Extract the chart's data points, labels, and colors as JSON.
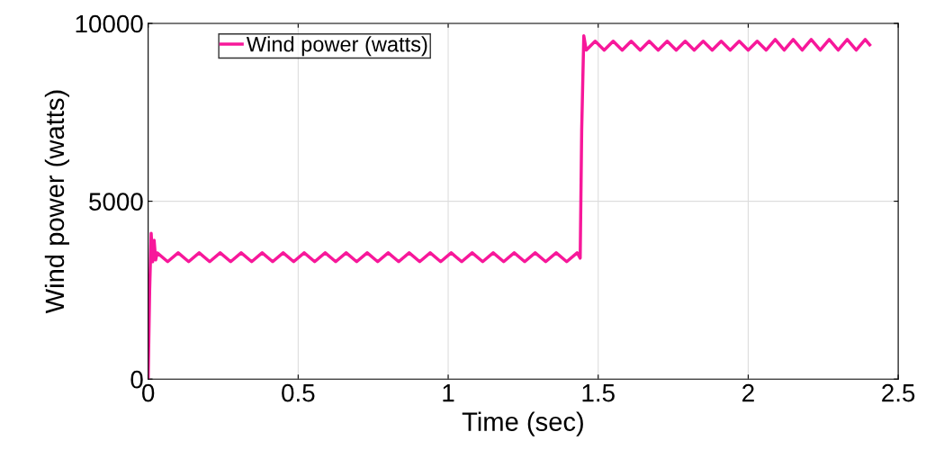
{
  "chart_data": {
    "type": "line",
    "xlabel": "Time (sec)",
    "ylabel": "Wind power (watts)",
    "xlim": [
      0,
      2.5
    ],
    "xticks": [
      0,
      0.5,
      1,
      1.5,
      2,
      2.5
    ],
    "ylim": [
      0,
      10000
    ],
    "yticks": [
      0,
      5000,
      10000
    ],
    "grid": true,
    "legend": "top left",
    "series": [
      {
        "name": "Wind power (watts)",
        "color": "#f7189a",
        "x": [
          0,
          0.005,
          0.01,
          0.015,
          0.02,
          0.025,
          0.03,
          0.065,
          0.1,
          0.135,
          0.17,
          0.205,
          0.24,
          0.275,
          0.31,
          0.345,
          0.38,
          0.415,
          0.45,
          0.485,
          0.52,
          0.555,
          0.59,
          0.625,
          0.66,
          0.695,
          0.73,
          0.765,
          0.8,
          0.835,
          0.87,
          0.905,
          0.94,
          0.975,
          1.01,
          1.045,
          1.08,
          1.115,
          1.15,
          1.185,
          1.22,
          1.255,
          1.29,
          1.325,
          1.36,
          1.395,
          1.43,
          1.44,
          1.445,
          1.452,
          1.46,
          1.49,
          1.52,
          1.55,
          1.58,
          1.61,
          1.64,
          1.67,
          1.7,
          1.73,
          1.76,
          1.79,
          1.82,
          1.85,
          1.88,
          1.91,
          1.94,
          1.97,
          2.0,
          2.03,
          2.06,
          2.09,
          2.12,
          2.15,
          2.18,
          2.21,
          2.24,
          2.27,
          2.3,
          2.33,
          2.36,
          2.39,
          2.405
        ],
        "values": [
          0,
          2500,
          4100,
          3300,
          3900,
          3350,
          3550,
          3300,
          3550,
          3300,
          3550,
          3300,
          3550,
          3300,
          3550,
          3300,
          3550,
          3300,
          3550,
          3300,
          3550,
          3300,
          3550,
          3300,
          3550,
          3300,
          3550,
          3300,
          3550,
          3300,
          3550,
          3300,
          3550,
          3300,
          3550,
          3300,
          3550,
          3300,
          3550,
          3300,
          3550,
          3300,
          3550,
          3300,
          3550,
          3300,
          3550,
          3400,
          7000,
          9650,
          9250,
          9500,
          9250,
          9500,
          9250,
          9500,
          9250,
          9500,
          9250,
          9500,
          9250,
          9500,
          9250,
          9500,
          9250,
          9500,
          9250,
          9500,
          9250,
          9500,
          9250,
          9550,
          9250,
          9550,
          9250,
          9550,
          9250,
          9550,
          9250,
          9550,
          9250,
          9550,
          9400
        ]
      }
    ]
  }
}
